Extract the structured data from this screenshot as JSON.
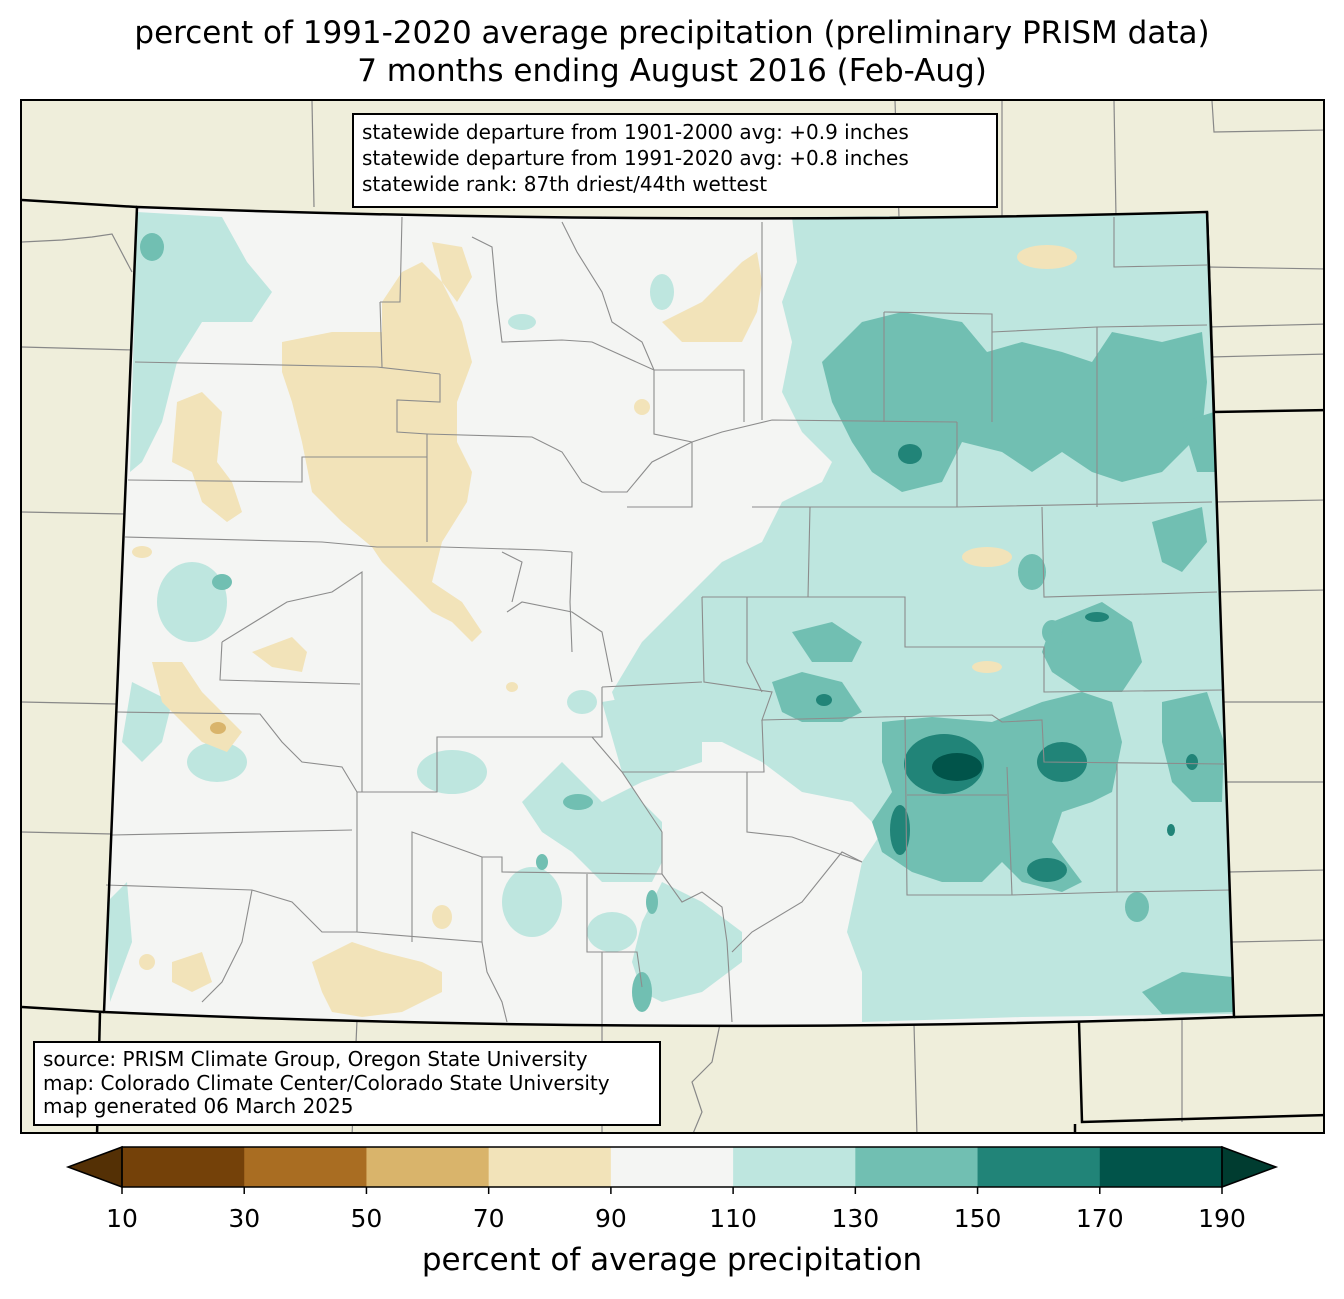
{
  "title": {
    "line1": "percent of 1991-2020 average precipitation (preliminary PRISM data)",
    "line2": "7 months ending August 2016 (Feb-Aug)"
  },
  "stats": {
    "line1": "statewide departure from 1901-2000 avg: +0.9 inches",
    "line2": "statewide departure from 1991-2020 avg: +0.8 inches",
    "line3": "statewide rank: 87th driest/44th wettest"
  },
  "source": {
    "line1": "source: PRISM Climate Group, Oregon State University",
    "line2": "map: Colorado Climate Center/Colorado State University",
    "line3": "map generated 06 March 2025"
  },
  "colorbar": {
    "label": "percent of average precipitation",
    "ticks": [
      "10",
      "30",
      "50",
      "70",
      "90",
      "110",
      "130",
      "150",
      "170",
      "190"
    ],
    "under_color": "#543005",
    "over_color": "#003c30",
    "bin_colors": [
      "#744109",
      "#a96d22",
      "#d9b46b",
      "#f2e3b9",
      "#f4f5f3",
      "#bee6df",
      "#71bfb2",
      "#218478",
      "#01544a"
    ]
  },
  "map_colors": {
    "background": "#efeedb",
    "state_fill": "#f4f5f3",
    "county_line": "#8c8c8c",
    "state_line": "#000000"
  }
}
